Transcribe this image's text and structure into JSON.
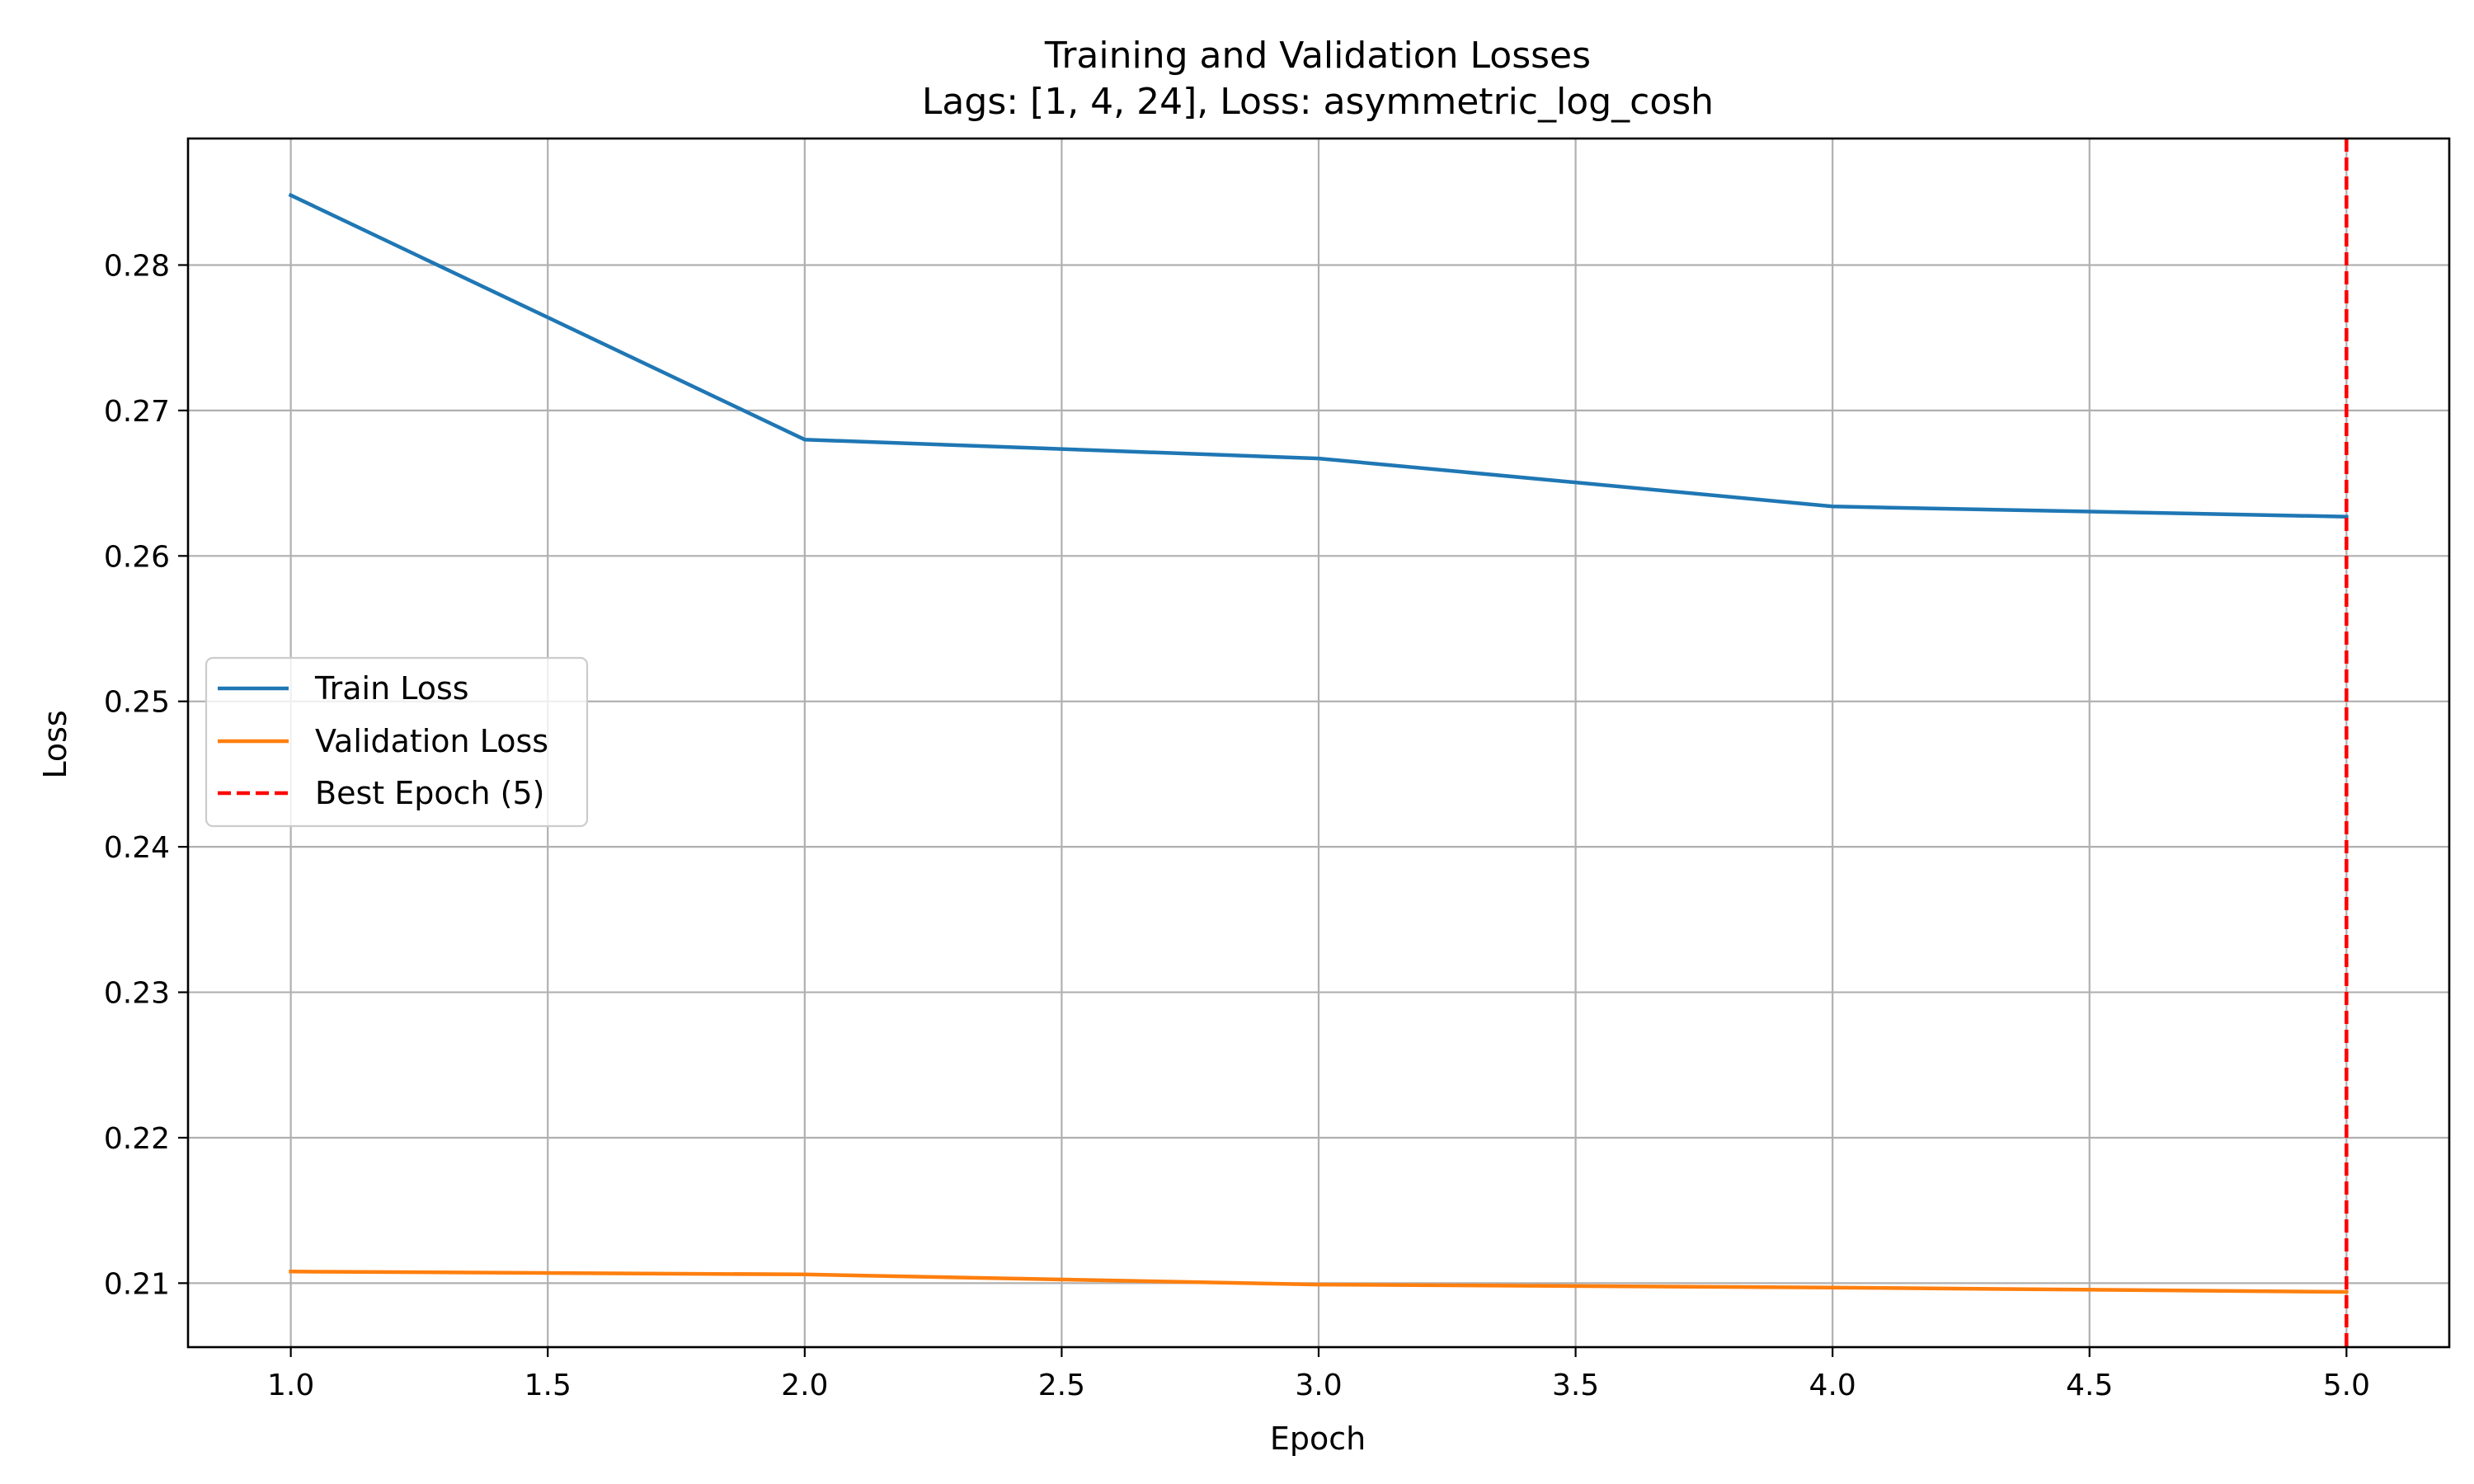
{
  "chart_data": {
    "type": "line",
    "title": "Training and Validation Losses",
    "subtitle": "Lags: [1, 4, 24], Loss: asymmetric_log_cosh",
    "xlabel": "Epoch",
    "ylabel": "Loss",
    "xlim": [
      0.8,
      5.2
    ],
    "ylim": [
      0.2056,
      0.2887
    ],
    "xticks": [
      1.0,
      1.5,
      2.0,
      2.5,
      3.0,
      3.5,
      4.0,
      4.5,
      5.0
    ],
    "xtick_labels": [
      "1.0",
      "1.5",
      "2.0",
      "2.5",
      "3.0",
      "3.5",
      "4.0",
      "4.5",
      "5.0"
    ],
    "yticks": [
      0.21,
      0.22,
      0.23,
      0.24,
      0.25,
      0.26,
      0.27,
      0.28
    ],
    "ytick_labels": [
      "0.21",
      "0.22",
      "0.23",
      "0.24",
      "0.25",
      "0.26",
      "0.27",
      "0.28"
    ],
    "grid": true,
    "legend_position": "center-left",
    "x": [
      1,
      2,
      3,
      4,
      5
    ],
    "series": [
      {
        "name": "Train Loss",
        "color": "#1f77b4",
        "style": "solid",
        "values": [
          0.2848,
          0.268,
          0.2667,
          0.2634,
          0.2627
        ]
      },
      {
        "name": "Validation Loss",
        "color": "#ff7f0e",
        "style": "solid",
        "values": [
          0.2108,
          0.2106,
          0.2099,
          0.2097,
          0.2094
        ]
      }
    ],
    "vlines": [
      {
        "name": "Best Epoch (5)",
        "x": 5,
        "color": "#ff0000",
        "style": "dashed"
      }
    ]
  }
}
